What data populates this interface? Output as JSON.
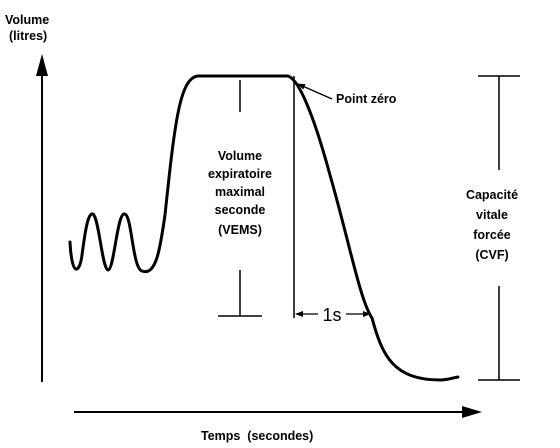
{
  "y_axis": {
    "label_line1": "Volume",
    "label_line2": "(litres)"
  },
  "x_axis": {
    "label": "Temps  (secondes)"
  },
  "annotations": {
    "point_zero": "Point zéro",
    "vems": [
      "Volume",
      "expiratoire",
      "maximal",
      "seconde",
      "(VEMS)"
    ],
    "cvf": [
      "Capacité",
      "vitale",
      "forcée",
      "(CVF)"
    ],
    "one_second": "1s"
  },
  "colors": {
    "ink": "#000000",
    "background": "#ffffff"
  }
}
